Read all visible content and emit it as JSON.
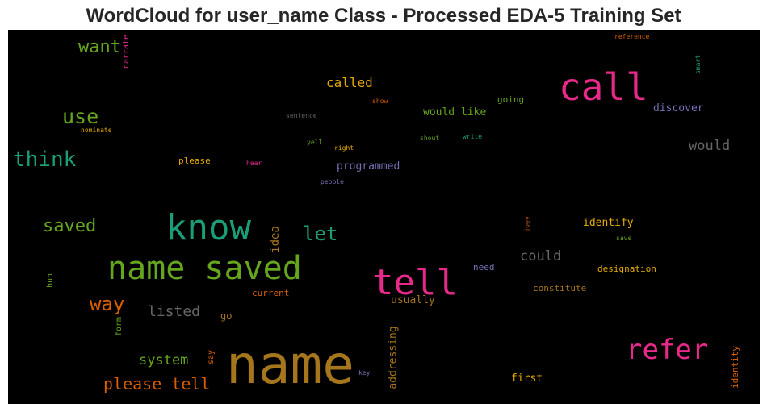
{
  "title": "WordCloud for user_name Class - Processed EDA-5 Training Set",
  "colors": {
    "background": "#000000",
    "pink": "#e7298a",
    "green": "#66a61e",
    "teal": "#1b9e77",
    "orange": "#d95f02",
    "gold": "#e6ab02",
    "brown": "#a6761d",
    "purple": "#7570b3",
    "gray": "#666666"
  },
  "words": [
    {
      "id": "name",
      "text": "name"
    },
    {
      "id": "know",
      "text": "know"
    },
    {
      "id": "name-saved",
      "text": "name saved"
    },
    {
      "id": "call",
      "text": "call"
    },
    {
      "id": "tell",
      "text": "tell"
    },
    {
      "id": "refer",
      "text": "refer"
    },
    {
      "id": "think",
      "text": "think"
    },
    {
      "id": "use",
      "text": "use"
    },
    {
      "id": "want",
      "text": "want"
    },
    {
      "id": "saved",
      "text": "saved"
    },
    {
      "id": "let",
      "text": "let"
    },
    {
      "id": "way",
      "text": "way"
    },
    {
      "id": "please-tell",
      "text": "please tell"
    },
    {
      "id": "listed",
      "text": "listed"
    },
    {
      "id": "system",
      "text": "system"
    },
    {
      "id": "could",
      "text": "could"
    },
    {
      "id": "would",
      "text": "would"
    },
    {
      "id": "called",
      "text": "called"
    },
    {
      "id": "programmed",
      "text": "programmed"
    },
    {
      "id": "would-like",
      "text": "would like"
    },
    {
      "id": "discover",
      "text": "discover"
    },
    {
      "id": "identify",
      "text": "identify"
    },
    {
      "id": "designation",
      "text": "designation"
    },
    {
      "id": "first",
      "text": "first"
    },
    {
      "id": "usually",
      "text": "usually"
    },
    {
      "id": "idea",
      "text": "idea"
    },
    {
      "id": "addressing",
      "text": "addressing"
    },
    {
      "id": "constitute",
      "text": "constitute"
    },
    {
      "id": "need",
      "text": "need"
    },
    {
      "id": "current",
      "text": "current"
    },
    {
      "id": "go",
      "text": "go"
    },
    {
      "id": "please",
      "text": "please"
    },
    {
      "id": "going",
      "text": "going"
    },
    {
      "id": "identity",
      "text": "identity"
    },
    {
      "id": "narrate",
      "text": "narrate"
    },
    {
      "id": "reference",
      "text": "reference"
    },
    {
      "id": "smart",
      "text": "smart"
    },
    {
      "id": "show",
      "text": "show"
    },
    {
      "id": "sentence",
      "text": "sentence"
    },
    {
      "id": "nominate",
      "text": "nominate"
    },
    {
      "id": "yell",
      "text": "yell"
    },
    {
      "id": "right",
      "text": "right"
    },
    {
      "id": "shout",
      "text": "shout"
    },
    {
      "id": "write",
      "text": "write"
    },
    {
      "id": "hear",
      "text": "hear"
    },
    {
      "id": "people",
      "text": "people"
    },
    {
      "id": "joey",
      "text": "joey"
    },
    {
      "id": "save",
      "text": "save"
    },
    {
      "id": "huh",
      "text": "huh"
    },
    {
      "id": "form",
      "text": "form"
    },
    {
      "id": "say",
      "text": "say"
    },
    {
      "id": "key",
      "text": "key"
    }
  ]
}
